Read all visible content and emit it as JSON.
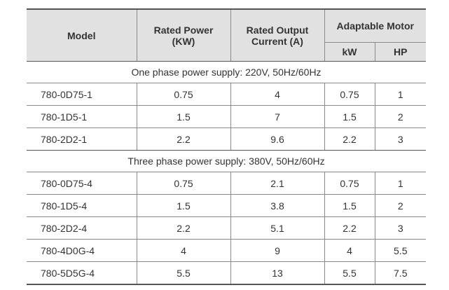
{
  "table": {
    "headers": {
      "model": "Model",
      "rated_power": [
        "Rated Power",
        "(KW)"
      ],
      "rated_output_current": [
        "Rated Output",
        "Current (A)"
      ],
      "adaptable_motor": "Adaptable Motor",
      "kw": "kW",
      "hp": "HP"
    },
    "sections": [
      {
        "title": "One phase power supply: 220V, 50Hz/60Hz",
        "rows": [
          {
            "model": "780-0D75-1",
            "rated_power": "0.75",
            "current": "4",
            "kw": "0.75",
            "hp": "1"
          },
          {
            "model": "780-1D5-1",
            "rated_power": "1.5",
            "current": "7",
            "kw": "1.5",
            "hp": "2"
          },
          {
            "model": "780-2D2-1",
            "rated_power": "2.2",
            "current": "9.6",
            "kw": "2.2",
            "hp": "3"
          }
        ]
      },
      {
        "title": "Three phase power supply: 380V, 50Hz/60Hz",
        "rows": [
          {
            "model": "780-0D75-4",
            "rated_power": "0.75",
            "current": "2.1",
            "kw": "0.75",
            "hp": "1"
          },
          {
            "model": "780-1D5-4",
            "rated_power": "1.5",
            "current": "3.8",
            "kw": "1.5",
            "hp": "2"
          },
          {
            "model": "780-2D2-4",
            "rated_power": "2.2",
            "current": "5.1",
            "kw": "2.2",
            "hp": "3"
          },
          {
            "model": "780-4D0G-4",
            "rated_power": "4",
            "current": "9",
            "kw": "4",
            "hp": "5.5"
          },
          {
            "model": "780-5D5G-4",
            "rated_power": "5.5",
            "current": "13",
            "kw": "5.5",
            "hp": "7.5"
          }
        ]
      }
    ]
  }
}
